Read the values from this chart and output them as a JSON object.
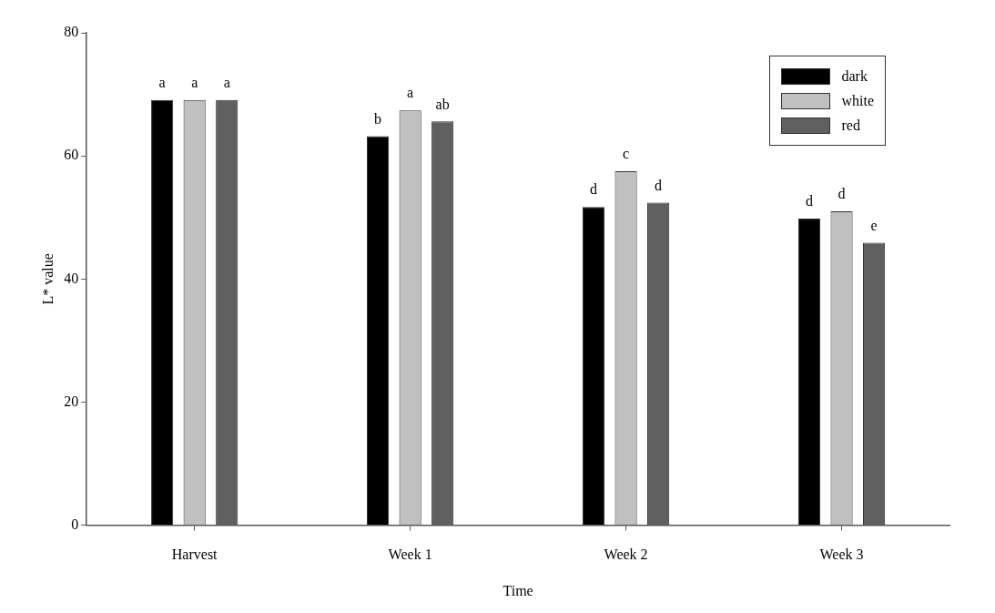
{
  "chart_data": {
    "type": "bar",
    "xlabel": "Time",
    "ylabel": "L* value",
    "categories": [
      "Harvest",
      "Week 1",
      "Week 2",
      "Week 3"
    ],
    "series": [
      {
        "name": "dark",
        "color": "#000000",
        "values": [
          69.1,
          63.2,
          51.7,
          49.8
        ],
        "value_labels": [
          "a",
          "b",
          "d",
          "d"
        ]
      },
      {
        "name": "white",
        "color": "#c0c0c0",
        "values": [
          69.1,
          67.4,
          57.5,
          51.0
        ],
        "value_labels": [
          "a",
          "a",
          "c",
          "d"
        ]
      },
      {
        "name": "red",
        "color": "#606060",
        "values": [
          69.1,
          65.6,
          52.4,
          45.9
        ],
        "value_labels": [
          "a",
          "ab",
          "d",
          "e"
        ]
      }
    ],
    "ylim": [
      0,
      80
    ],
    "yticks": [
      0,
      20,
      40,
      60,
      80
    ],
    "grid": false,
    "legend": "top right"
  }
}
